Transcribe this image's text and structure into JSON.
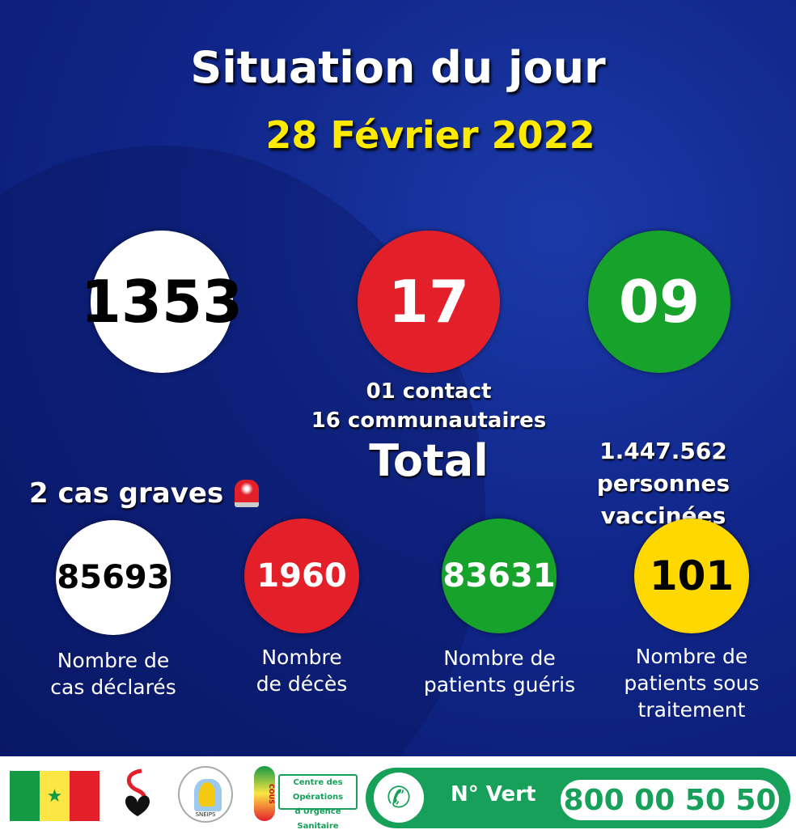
{
  "header": {
    "title": "Situation du jour",
    "date": "28 Février 2022"
  },
  "daily": {
    "tests": "1353",
    "positive": "17",
    "positive_breakdown": [
      "01 contact",
      "16 communautaires"
    ],
    "recovered": "09"
  },
  "total_label": "Total",
  "vaccinated": [
    "1.447.562 personnes",
    "vaccinées"
  ],
  "severe": {
    "label": "2 cas graves",
    "icon": "siren-icon"
  },
  "totals": [
    {
      "value": "85693",
      "label": [
        "Nombre de",
        "cas déclarés"
      ],
      "color": "#ffffff"
    },
    {
      "value": "1960",
      "label": [
        "Nombre",
        "de décès"
      ],
      "color": "#e3202a"
    },
    {
      "value": "83631",
      "label": [
        "Nombre de",
        "patients guéris"
      ],
      "color": "#17a32b"
    },
    {
      "value": "101",
      "label": [
        "Nombre de",
        "patients sous",
        "traitement"
      ],
      "color": "#ffd800"
    }
  ],
  "footer": {
    "cous_text": [
      "Centre des Opérations",
      "d'Urgence Sanitaire"
    ],
    "cous_side": "COUS",
    "sneips": "SNEIPS",
    "hotline_label": "N° Vert",
    "hotline_number": "800 00 50 50"
  },
  "colors": {
    "background": "#10268a",
    "accent_yellow": "#ffeb00",
    "green": "#16a05a"
  }
}
